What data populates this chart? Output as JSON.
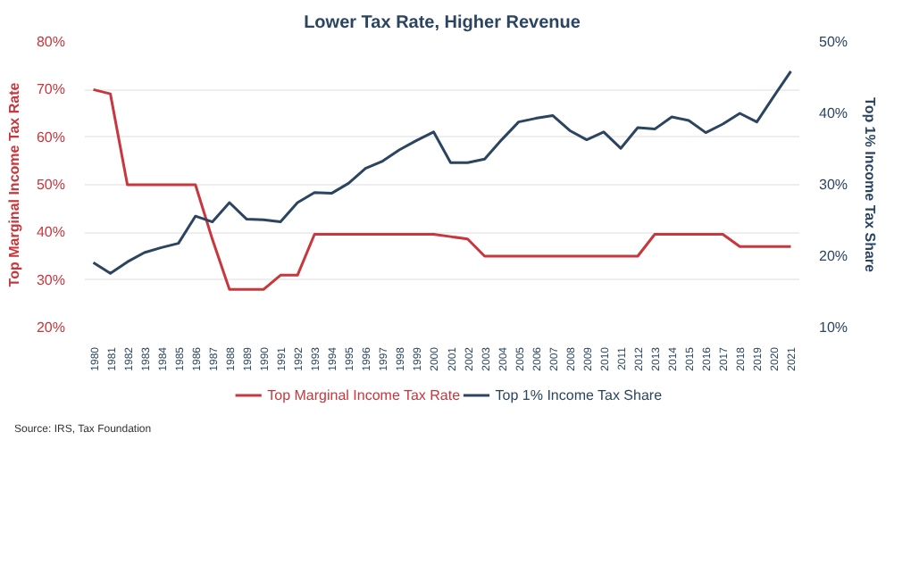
{
  "chart_data": {
    "type": "line",
    "title": "Lower Tax Rate, Higher Revenue",
    "ylabel": "Top Marginal Income Tax Rate",
    "y2label": "Top 1% Income Tax Share",
    "annotations": [
      "Source: IRS, Tax Foundation"
    ],
    "categories": [
      "1980",
      "1981",
      "1982",
      "1983",
      "1984",
      "1985",
      "1986",
      "1987",
      "1988",
      "1989",
      "1990",
      "1991",
      "1992",
      "1993",
      "1994",
      "1995",
      "1996",
      "1997",
      "1998",
      "1999",
      "2000",
      "2001",
      "2002",
      "2003",
      "2004",
      "2005",
      "2006",
      "2007",
      "2008",
      "2009",
      "2010",
      "2011",
      "2012",
      "2013",
      "2014",
      "2015",
      "2016",
      "2017",
      "2018",
      "2019",
      "2020",
      "2021"
    ],
    "series": [
      {
        "name": "Top Marginal Income Tax Rate",
        "color": "#c8373d",
        "values": [
          70,
          69.1,
          50,
          50,
          50,
          50,
          50,
          38.5,
          28,
          28,
          28,
          31,
          31,
          39.6,
          39.6,
          39.6,
          39.6,
          39.6,
          39.6,
          39.6,
          39.6,
          39.1,
          38.6,
          35,
          35,
          35,
          35,
          35,
          35,
          35,
          35,
          35,
          35,
          39.6,
          39.6,
          39.6,
          39.6,
          39.6,
          37,
          37,
          37,
          37
        ]
      },
      {
        "name": "Top 1% Income Tax Share",
        "color": "#2b4561",
        "axis": "y2",
        "values": [
          19.1,
          17.6,
          19.2,
          20.5,
          21.2,
          21.8,
          25.6,
          24.8,
          27.5,
          25.2,
          25.1,
          24.8,
          27.5,
          28.9,
          28.8,
          30.2,
          32.3,
          33.3,
          34.9,
          36.2,
          37.4,
          33.1,
          33.1,
          33.6,
          36.3,
          38.8,
          39.3,
          39.7,
          37.6,
          36.3,
          37.4,
          35.1,
          38.0,
          37.8,
          39.5,
          39.0,
          37.3,
          38.5,
          40.0,
          38.8,
          42.4,
          45.9
        ]
      }
    ],
    "ylim": [
      20,
      80
    ],
    "yticks": [
      {
        "value": 20,
        "label": "20%"
      },
      {
        "value": 30,
        "label": "30%"
      },
      {
        "value": 40,
        "label": "40%"
      },
      {
        "value": 50,
        "label": "50%"
      },
      {
        "value": 60,
        "label": "60%"
      },
      {
        "value": 70,
        "label": "70%"
      },
      {
        "value": 80,
        "label": "80%"
      }
    ],
    "y2lim": [
      10,
      50
    ],
    "y2ticks": [
      {
        "value": 10,
        "label": "10%"
      },
      {
        "value": 20,
        "label": "20%"
      },
      {
        "value": 30,
        "label": "30%"
      },
      {
        "value": 40,
        "label": "40%"
      },
      {
        "value": 50,
        "label": "50%"
      }
    ],
    "grid": "y",
    "legend": "bottom",
    "marker": "none",
    "line_style": "solid"
  }
}
